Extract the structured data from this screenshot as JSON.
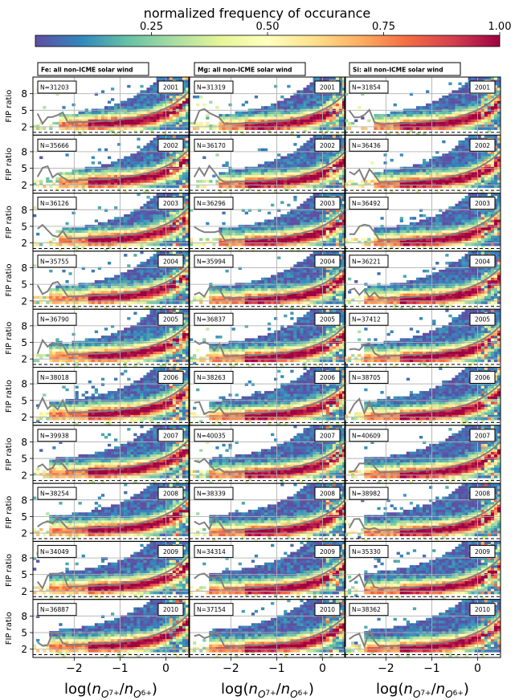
{
  "colorbar": {
    "label": "normalized frequency of occurance",
    "ticks": [
      "0.25",
      "0.50",
      "0.75",
      "1.00"
    ],
    "tick_values": [
      0.25,
      0.5,
      0.75,
      1.0
    ],
    "range": [
      0.0,
      1.0
    ],
    "colormap": "Spectral_r"
  },
  "chart_data": {
    "type": "heatmap",
    "title": "",
    "xlabel": "log(n_{O^{7+}}/n_{O^{6+}})",
    "ylabel": "FIP ratio",
    "xlim": [
      -2.9,
      0.5
    ],
    "x_ticks": [
      -2,
      -1,
      0
    ],
    "x_tick_labels": [
      "−2",
      "−1",
      "0"
    ],
    "y_ticks": [
      2,
      5,
      8
    ],
    "y_tick_labels": [
      "2",
      "5",
      "8"
    ],
    "ylim": [
      0.5,
      11
    ],
    "grid": true,
    "reference_line": {
      "y": 1,
      "style": "dashed",
      "color": "#000000"
    },
    "columns": [
      {
        "element": "Fe",
        "label": "Fe: all non-ICME solar wind"
      },
      {
        "element": "Mg",
        "label": "Mg: all non-ICME solar wind"
      },
      {
        "element": "Si",
        "label": "Si: all non-ICME solar wind"
      }
    ],
    "years": [
      "2001",
      "2002",
      "2003",
      "2004",
      "2005",
      "2006",
      "2007",
      "2008",
      "2009",
      "2010"
    ],
    "counts": [
      [
        "N=31203",
        "N=31319",
        "N=31854"
      ],
      [
        "N=35666",
        "N=36170",
        "N=36436"
      ],
      [
        "N=36126",
        "N=36296",
        "N=36492"
      ],
      [
        "N=35755",
        "N=35994",
        "N=36221"
      ],
      [
        "N=36790",
        "N=36837",
        "N=37412"
      ],
      [
        "N=38018",
        "N=38263",
        "N=38705"
      ],
      [
        "N=39938",
        "N=40035",
        "N=40609"
      ],
      [
        "N=38254",
        "N=38339",
        "N=38982"
      ],
      [
        "N=34049",
        "N=34314",
        "N=35330"
      ],
      [
        "N=36887",
        "N=37154",
        "N=38362"
      ]
    ]
  }
}
